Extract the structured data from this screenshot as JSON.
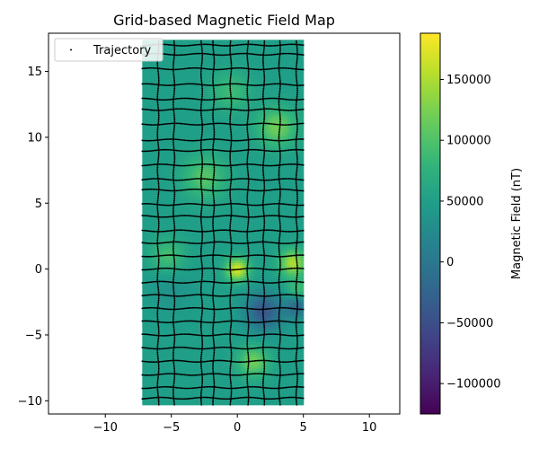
{
  "chart_data": {
    "type": "heatmap",
    "title": "Grid-based Magnetic Field Map",
    "xlim": [
      -14.3,
      12.3
    ],
    "ylim": [
      -11.0,
      17.9
    ],
    "xticks": [
      -10,
      -5,
      0,
      5,
      10
    ],
    "yticks": [
      -10,
      -5,
      0,
      5,
      10,
      15
    ],
    "field_extent": {
      "x": [
        -7.2,
        5.0
      ],
      "y": [
        -10.3,
        17.4
      ]
    },
    "field_base_value": 50000,
    "anomalies": [
      {
        "x": 3.0,
        "y": 10.8,
        "peak": 120000,
        "radius": 1.0
      },
      {
        "x": -2.5,
        "y": 7.0,
        "peak": 105000,
        "radius": 1.1
      },
      {
        "x": 0.0,
        "y": 0.0,
        "peak": 170000,
        "radius": 0.6
      },
      {
        "x": 4.2,
        "y": 0.5,
        "peak": 150000,
        "radius": 0.7
      },
      {
        "x": 4.6,
        "y": -1.6,
        "peak": 95000,
        "radius": 0.6
      },
      {
        "x": -5.3,
        "y": 1.0,
        "peak": 95000,
        "radius": 0.9
      },
      {
        "x": 1.2,
        "y": -7.0,
        "peak": 120000,
        "radius": 0.8
      },
      {
        "x": -0.5,
        "y": 13.5,
        "peak": 90000,
        "radius": 1.0
      },
      {
        "x": 2.0,
        "y": -3.2,
        "peak": -40000,
        "radius": 1.0
      },
      {
        "x": 4.5,
        "y": -2.8,
        "peak": -20000,
        "radius": 0.6
      },
      {
        "x": -5.0,
        "y": -1.5,
        "peak": 35000,
        "radius": 1.2
      }
    ],
    "trajectory": {
      "name": "Trajectory",
      "color": "#000000",
      "vertical_lines_x": [
        -6.0,
        -4.8,
        -2.7,
        -1.8,
        -0.5,
        0.8,
        2.0,
        3.2,
        4.5
      ],
      "horizontal_lines_y": [
        17.0,
        16.3,
        15.2,
        14.0,
        12.9,
        12.1,
        11.0,
        9.8,
        9.0,
        7.9,
        6.8,
        6.0,
        4.9,
        4.0,
        2.9,
        2.0,
        1.0,
        0.0,
        -1.0,
        -2.0,
        -3.0,
        -4.0,
        -5.0,
        -6.0,
        -7.0,
        -8.0,
        -9.0,
        -9.8
      ],
      "x_span": [
        -7.2,
        5.0
      ],
      "y_span": [
        -10.3,
        17.4
      ]
    },
    "colorbar": {
      "label": "Magnetic Field (nT)",
      "range": [
        -125000,
        188000
      ],
      "ticks": [
        -100000,
        -50000,
        0,
        50000,
        100000,
        150000
      ],
      "tick_labels": [
        "−100000",
        "−50000",
        "0",
        "50000",
        "100000",
        "150000"
      ],
      "colormap": "viridis"
    },
    "legend": {
      "location": "upper-left",
      "entries": [
        "Trajectory"
      ]
    },
    "grid": false
  }
}
